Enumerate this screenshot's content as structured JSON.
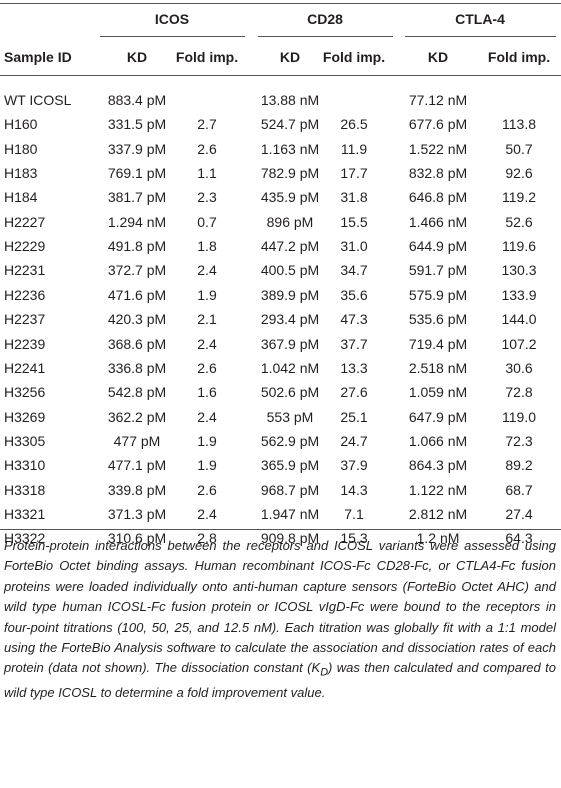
{
  "table": {
    "groups": [
      "ICOS",
      "CD28",
      "CTLA-4"
    ],
    "columns": [
      "Sample ID",
      "KD",
      "Fold imp.",
      "KD",
      "Fold imp.",
      "KD",
      "Fold imp."
    ],
    "rows": [
      [
        "WT ICOSL",
        "883.4 pM",
        null,
        "13.88 nM",
        null,
        "77.12 nM",
        null
      ],
      [
        "H160",
        "331.5 pM",
        "2.7",
        "524.7 pM",
        "26.5",
        "677.6 pM",
        "113.8"
      ],
      [
        "H180",
        "337.9 pM",
        "2.6",
        "1.163 nM",
        "11.9",
        "1.522 nM",
        "50.7"
      ],
      [
        "H183",
        "769.1 pM",
        "1.1",
        "782.9 pM",
        "17.7",
        "832.8 pM",
        "92.6"
      ],
      [
        "H184",
        "381.7 pM",
        "2.3",
        "435.9 pM",
        "31.8",
        "646.8 pM",
        "119.2"
      ],
      [
        "H2227",
        "1.294 nM",
        "0.7",
        "896 pM",
        "15.5",
        "1.466 nM",
        "52.6"
      ],
      [
        "H2229",
        "491.8 pM",
        "1.8",
        "447.2 pM",
        "31.0",
        "644.9 pM",
        "119.6"
      ],
      [
        "H2231",
        "372.7 pM",
        "2.4",
        "400.5 pM",
        "34.7",
        "591.7 pM",
        "130.3"
      ],
      [
        "H2236",
        "471.6 pM",
        "1.9",
        "389.9 pM",
        "35.6",
        "575.9 pM",
        "133.9"
      ],
      [
        "H2237",
        "420.3 pM",
        "2.1",
        "293.4 pM",
        "47.3",
        "535.6 pM",
        "144.0"
      ],
      [
        "H2239",
        "368.6 pM",
        "2.4",
        "367.9 pM",
        "37.7",
        "719.4 pM",
        "107.2"
      ],
      [
        "H2241",
        "336.8 pM",
        "2.6",
        "1.042 nM",
        "13.3",
        "2.518 nM",
        "30.6"
      ],
      [
        "H3256",
        "542.8 pM",
        "1.6",
        "502.6 pM",
        "27.6",
        "1.059 nM",
        "72.8"
      ],
      [
        "H3269",
        "362.2 pM",
        "2.4",
        "553 pM",
        "25.1",
        "647.9 pM",
        "119.0"
      ],
      [
        "H3305",
        "477 pM",
        "1.9",
        "562.9 pM",
        "24.7",
        "1.066 nM",
        "72.3"
      ],
      [
        "H3310",
        "477.1 pM",
        "1.9",
        "365.9 pM",
        "37.9",
        "864.3 pM",
        "89.2"
      ],
      [
        "H3318",
        "339.8 pM",
        "2.6",
        "968.7 pM",
        "14.3",
        "1.122 nM",
        "68.7"
      ],
      [
        "H3321",
        "371.3 pM",
        "2.4",
        "1.947 nM",
        "7.1",
        "2.812 nM",
        "27.4"
      ],
      [
        "H3322",
        "310.6 pM",
        "2.8",
        "909.8 pM",
        "15.3",
        "1.2 nM",
        "64.3"
      ]
    ],
    "footnote": [
      "Protein-protein interactions between the receptors and ICOSL variants were assessed using ForteBio Octet binding assays. Human recombinant ICOS-Fc CD28-Fc, or CTLA4-Fc fusion proteins were loaded individually onto anti-human capture sensors (ForteBio Octet AHC) and wild type human ICOSL-Fc fusion protein or ICOSL vIgD-Fc were bound to the receptors in four-point titrations (100, 50, 25, and 12.5 nM). Each titration was globally fit with a 1:1 model using the ForteBio Analysis software to calculate the association and dissociation rates of each protein (data not shown). The dissociation constant (K",
      "D",
      ") was then calculated and compared to wild type ICOSL to determine a fold improvement value."
    ]
  }
}
